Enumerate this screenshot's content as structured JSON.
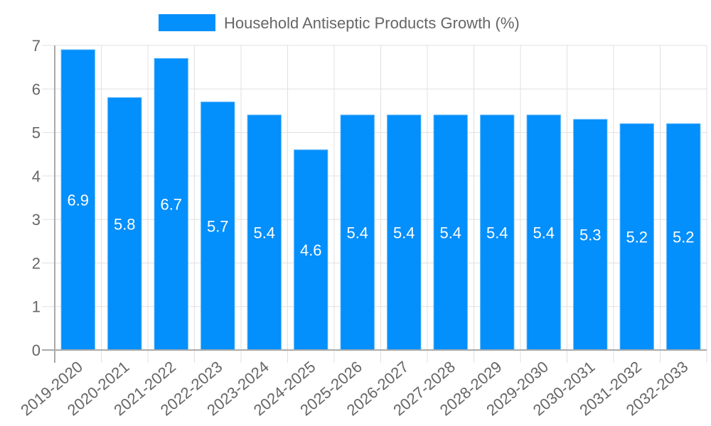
{
  "chart_data": {
    "type": "bar",
    "title": "",
    "legend": [
      {
        "label": "Household Antiseptic Products Growth (%)",
        "color": "#038ffc"
      }
    ],
    "legend_position": "top",
    "xlabel": "",
    "ylabel": "",
    "categories": [
      "2019-2020",
      "2020-2021",
      "2021-2022",
      "2022-2023",
      "2023-2024",
      "2024-2025",
      "2025-2026",
      "2026-2027",
      "2027-2028",
      "2028-2029",
      "2029-2030",
      "2030-2031",
      "2031-2032",
      "2032-2033"
    ],
    "series": [
      {
        "name": "Household Antiseptic Products Growth (%)",
        "color": "#038ffc",
        "values": [
          6.9,
          5.8,
          6.7,
          5.7,
          5.4,
          4.6,
          5.4,
          5.4,
          5.4,
          5.4,
          5.4,
          5.3,
          5.2,
          5.2
        ]
      }
    ],
    "data_labels": [
      "6.9",
      "5.8",
      "6.7",
      "5.7",
      "5.4",
      "4.6",
      "5.4",
      "5.4",
      "5.4",
      "5.4",
      "5.4",
      "5.3",
      "5.2",
      "5.2"
    ],
    "y_ticks": [
      "0",
      "1",
      "2",
      "3",
      "4",
      "5",
      "6",
      "7"
    ],
    "ylim": [
      0,
      7
    ],
    "grid": true
  },
  "colors": {
    "bar": "#038ffc",
    "bar_border": "#4aaefc",
    "grid": "#e0e0e0",
    "axis": "#aaaaaa",
    "text": "#666666",
    "label": "#ffffff"
  }
}
